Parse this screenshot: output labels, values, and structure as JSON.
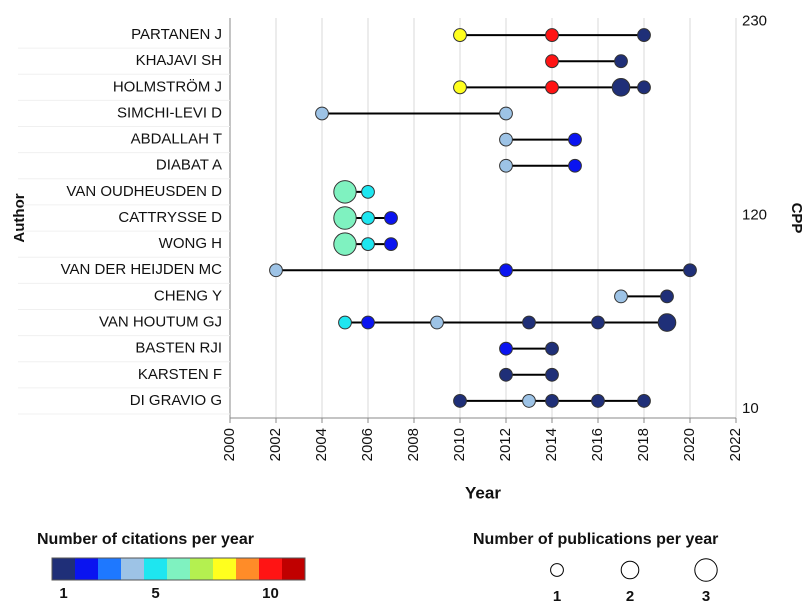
{
  "chart_data": {
    "type": "dotplot",
    "xlabel": "Year",
    "ylabel": "Author",
    "y2label": "CPP",
    "xlim": [
      2000,
      2022
    ],
    "xticks": [
      2000,
      2002,
      2004,
      2006,
      2008,
      2010,
      2012,
      2014,
      2016,
      2018,
      2020,
      2022
    ],
    "y2lim": [
      5,
      232
    ],
    "y2ticks": [
      10,
      120,
      230
    ],
    "grid": true,
    "rows": [
      {
        "name": "PARTANEN J",
        "x": [
          2010,
          2014,
          2018
        ],
        "citations": [
          8,
          10,
          1
        ],
        "publications": [
          1,
          1,
          1
        ]
      },
      {
        "name": "KHAJAVI SH",
        "x": [
          2014,
          2017
        ],
        "citations": [
          10,
          1
        ],
        "publications": [
          1,
          1
        ]
      },
      {
        "name": "HOLMSTRÖM J",
        "x": [
          2010,
          2014,
          2017,
          2018
        ],
        "citations": [
          8,
          10,
          1,
          1
        ],
        "publications": [
          1,
          1,
          2,
          1
        ]
      },
      {
        "name": "SIMCHI-LEVI D",
        "x": [
          2004,
          2012
        ],
        "citations": [
          4,
          4
        ],
        "publications": [
          1,
          1
        ]
      },
      {
        "name": "ABDALLAH T",
        "x": [
          2012,
          2015
        ],
        "citations": [
          4,
          2
        ],
        "publications": [
          1,
          1
        ]
      },
      {
        "name": "DIABAT A",
        "x": [
          2012,
          2015
        ],
        "citations": [
          4,
          2
        ],
        "publications": [
          1,
          1
        ]
      },
      {
        "name": "VAN OUDHEUSDEN D",
        "x": [
          2005,
          2006
        ],
        "citations": [
          6,
          5
        ],
        "publications": [
          3,
          1
        ]
      },
      {
        "name": "CATTRYSSE D",
        "x": [
          2005,
          2006,
          2007
        ],
        "citations": [
          6,
          5,
          2
        ],
        "publications": [
          3,
          1,
          1
        ]
      },
      {
        "name": "WONG H",
        "x": [
          2005,
          2006,
          2007
        ],
        "citations": [
          6,
          5,
          2
        ],
        "publications": [
          3,
          1,
          1
        ]
      },
      {
        "name": "VAN DER HEIJDEN MC",
        "x": [
          2002,
          2012,
          2020
        ],
        "citations": [
          4,
          2,
          1
        ],
        "publications": [
          1,
          1,
          1
        ]
      },
      {
        "name": "CHENG Y",
        "x": [
          2017,
          2019
        ],
        "citations": [
          4,
          1
        ],
        "publications": [
          1,
          1
        ]
      },
      {
        "name": "VAN HOUTUM GJ",
        "x": [
          2005,
          2006,
          2009,
          2013,
          2016,
          2019
        ],
        "citations": [
          5,
          2,
          4,
          1,
          1,
          1
        ],
        "publications": [
          1,
          1,
          1,
          1,
          1,
          2
        ]
      },
      {
        "name": "BASTEN RJI",
        "x": [
          2012,
          2014
        ],
        "citations": [
          2,
          1
        ],
        "publications": [
          1,
          1
        ]
      },
      {
        "name": "KARSTEN F",
        "x": [
          2012,
          2014
        ],
        "citations": [
          1,
          1
        ],
        "publications": [
          1,
          1
        ]
      },
      {
        "name": "DI GRAVIO G",
        "x": [
          2010,
          2013,
          2014,
          2016,
          2018
        ],
        "citations": [
          1,
          4,
          1,
          1,
          1
        ],
        "publications": [
          1,
          1,
          1,
          1,
          1
        ]
      }
    ],
    "colorbar": {
      "title": "Number of citations per year",
      "colors": [
        "#1f2f78",
        "#0a14f0",
        "#1e78ff",
        "#9dc3e6",
        "#1ee6f0",
        "#7ff2c0",
        "#b4f050",
        "#ffff1e",
        "#ff8c28",
        "#ff1414",
        "#c00000"
      ],
      "ticks": [
        1,
        5,
        10
      ]
    },
    "size_legend": {
      "title": "Number of publications per year",
      "values": [
        1,
        2,
        3
      ]
    }
  }
}
